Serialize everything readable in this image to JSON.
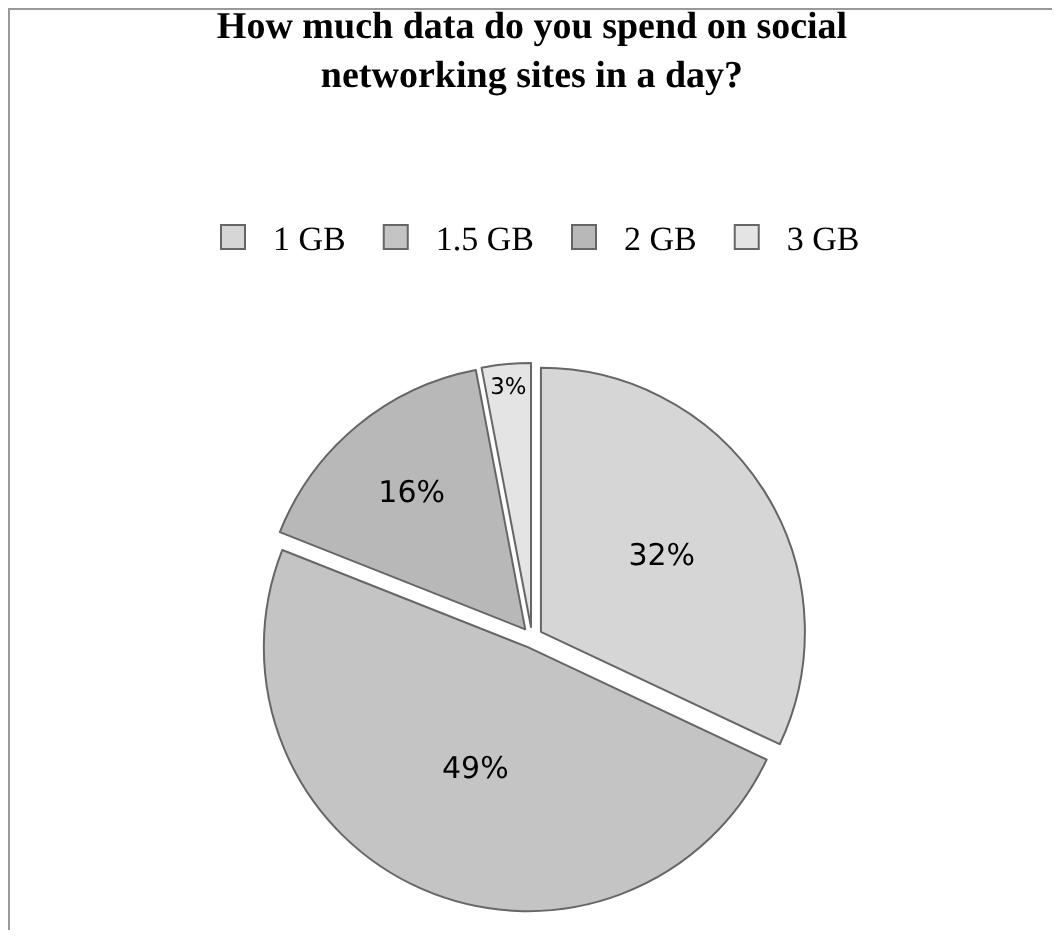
{
  "chart_data": {
    "type": "pie",
    "title": "How much data do you spend on social networking sites in a day?",
    "categories": [
      "1 GB",
      "1.5 GB",
      "2 GB",
      "3 GB"
    ],
    "values": [
      32,
      49,
      16,
      3
    ],
    "colors": [
      "#d6d6d6",
      "#c4c4c4",
      "#b8b8b8",
      "#e4e4e4"
    ],
    "value_labels": [
      "32%",
      "49%",
      "16%",
      "3%"
    ],
    "legend": "top"
  }
}
